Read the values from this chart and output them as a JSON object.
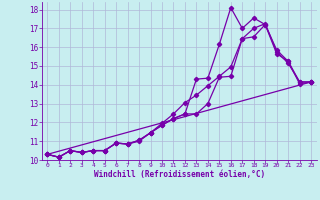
{
  "xlabel": "Windchill (Refroidissement éolien,°C)",
  "bg_color": "#c8eef0",
  "grid_color": "#b0b8d8",
  "line_color": "#7700aa",
  "xlim": [
    -0.5,
    23.5
  ],
  "ylim": [
    10,
    18.4
  ],
  "yticks": [
    10,
    11,
    12,
    13,
    14,
    15,
    16,
    17,
    18
  ],
  "xticks": [
    0,
    1,
    2,
    3,
    4,
    5,
    6,
    7,
    8,
    9,
    10,
    11,
    12,
    13,
    14,
    15,
    16,
    17,
    18,
    19,
    20,
    21,
    22,
    23
  ],
  "line1_x": [
    0,
    1,
    2,
    3,
    4,
    5,
    6,
    7,
    8,
    9,
    10,
    11,
    12,
    13,
    14,
    15,
    16,
    17,
    18,
    19,
    20,
    21,
    22,
    23
  ],
  "line1_y": [
    10.3,
    10.15,
    10.5,
    10.4,
    10.5,
    10.5,
    10.9,
    10.85,
    11.05,
    11.45,
    11.85,
    12.2,
    12.45,
    12.45,
    13.0,
    14.4,
    14.45,
    16.45,
    17.0,
    17.25,
    15.75,
    15.15,
    14.15,
    14.15
  ],
  "line2_x": [
    0,
    1,
    2,
    3,
    4,
    5,
    6,
    7,
    8,
    9,
    10,
    11,
    12,
    13,
    14,
    15,
    16,
    17,
    18,
    19,
    20,
    21,
    22,
    23
  ],
  "line2_y": [
    10.3,
    10.15,
    10.5,
    10.4,
    10.5,
    10.5,
    10.9,
    10.85,
    11.05,
    11.45,
    11.85,
    12.2,
    12.45,
    14.3,
    14.35,
    16.15,
    18.1,
    17.0,
    17.55,
    17.2,
    15.85,
    15.25,
    14.15,
    14.15
  ],
  "line3_x": [
    0,
    23
  ],
  "line3_y": [
    10.3,
    14.15
  ],
  "line4_x": [
    0,
    1,
    2,
    3,
    4,
    5,
    6,
    7,
    8,
    9,
    10,
    11,
    12,
    13,
    14,
    15,
    16,
    17,
    18,
    19,
    20,
    21,
    22,
    23
  ],
  "line4_y": [
    10.3,
    10.15,
    10.5,
    10.4,
    10.5,
    10.5,
    10.9,
    10.85,
    11.0,
    11.45,
    11.95,
    12.45,
    13.05,
    13.45,
    13.95,
    14.45,
    14.95,
    16.45,
    16.55,
    17.2,
    15.65,
    15.25,
    14.05,
    14.15
  ]
}
